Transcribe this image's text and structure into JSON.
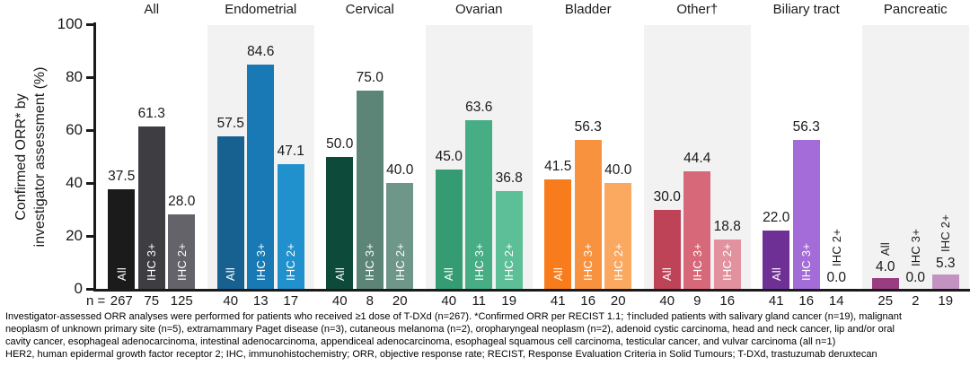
{
  "chart_data": {
    "type": "bar",
    "ylabel_line1": "Confirmed ORR* by",
    "ylabel_line2": "investigator assessment (%)",
    "ylim": [
      0,
      100
    ],
    "yticks": [
      0,
      20,
      40,
      60,
      80,
      100
    ],
    "grid": false,
    "legend_position": "none",
    "series_labels": [
      "All",
      "IHC 3+",
      "IHC 2+"
    ],
    "n_prefix": "n =",
    "groups": [
      {
        "name": "All",
        "shaded": false,
        "values": [
          37.5,
          61.3,
          28.0
        ],
        "n": [
          267,
          75,
          125
        ],
        "colors": [
          "#1b1b1b",
          "#3e3e42",
          "#636369"
        ]
      },
      {
        "name": "Endometrial",
        "shaded": true,
        "values": [
          57.5,
          84.6,
          47.1
        ],
        "n": [
          40,
          13,
          17
        ],
        "colors": [
          "#176190",
          "#1979b4",
          "#2191ce"
        ]
      },
      {
        "name": "Cervical",
        "shaded": false,
        "values": [
          50.0,
          75.0,
          40.0
        ],
        "n": [
          40,
          8,
          20
        ],
        "colors": [
          "#0d4a3a",
          "#5c8577",
          "#6e978a"
        ]
      },
      {
        "name": "Ovarian",
        "shaded": true,
        "values": [
          45.0,
          63.6,
          36.8
        ],
        "n": [
          40,
          11,
          19
        ],
        "colors": [
          "#359b72",
          "#47ad85",
          "#5dbf97"
        ]
      },
      {
        "name": "Bladder",
        "shaded": false,
        "values": [
          41.5,
          56.3,
          40.0
        ],
        "n": [
          41,
          16,
          20
        ],
        "colors": [
          "#f87c1c",
          "#f9923e",
          "#fba961"
        ]
      },
      {
        "name": "Other†",
        "shaded": true,
        "values": [
          30.0,
          44.4,
          18.8
        ],
        "n": [
          40,
          9,
          16
        ],
        "colors": [
          "#bf4357",
          "#d66879",
          "#e2929e"
        ]
      },
      {
        "name": "Biliary tract",
        "shaded": false,
        "values": [
          22.0,
          56.3,
          0.0
        ],
        "n": [
          41,
          16,
          14
        ],
        "colors": [
          "#6e3094",
          "#a46cd8",
          "#c9a4e4"
        ]
      },
      {
        "name": "Pancreatic",
        "shaded": true,
        "values": [
          4.0,
          0.0,
          5.3
        ],
        "n": [
          25,
          2,
          19
        ],
        "colors": [
          "#993c80",
          "#b468a6",
          "#c293c0"
        ]
      }
    ]
  },
  "footnote": {
    "lines": [
      "Investigator-assessed ORR analyses were performed for patients who received ≥1 dose of T-DXd (n=267). *Confirmed ORR per RECIST 1.1; †included patients with salivary gland cancer (n=19), malignant",
      "neoplasm of unknown primary site (n=5), extramammary Paget disease (n=3), cutaneous melanoma (n=2), oropharyngeal neoplasm (n=2), adenoid cystic carcinoma, head and neck cancer, lip and/or oral",
      "cavity cancer, esophageal adenocarcinoma, intestinal adenocarcinoma, appendiceal adenocarcinoma, esophageal squamous cell carcinoma, testicular cancer, and vulvar carcinoma (all n=1)",
      "HER2, human epidermal growth factor receptor 2; IHC, immunohistochemistry; ORR, objective response rate; RECIST, Response Evaluation Criteria in Solid Tumours; T-DXd, trastuzumab deruxtecan"
    ]
  },
  "colors": {
    "panel_shade": "#f2f2f2",
    "axis": "#1a1a1a",
    "inside_bar_label": "#ffffff",
    "text": "#1a1a1a"
  }
}
